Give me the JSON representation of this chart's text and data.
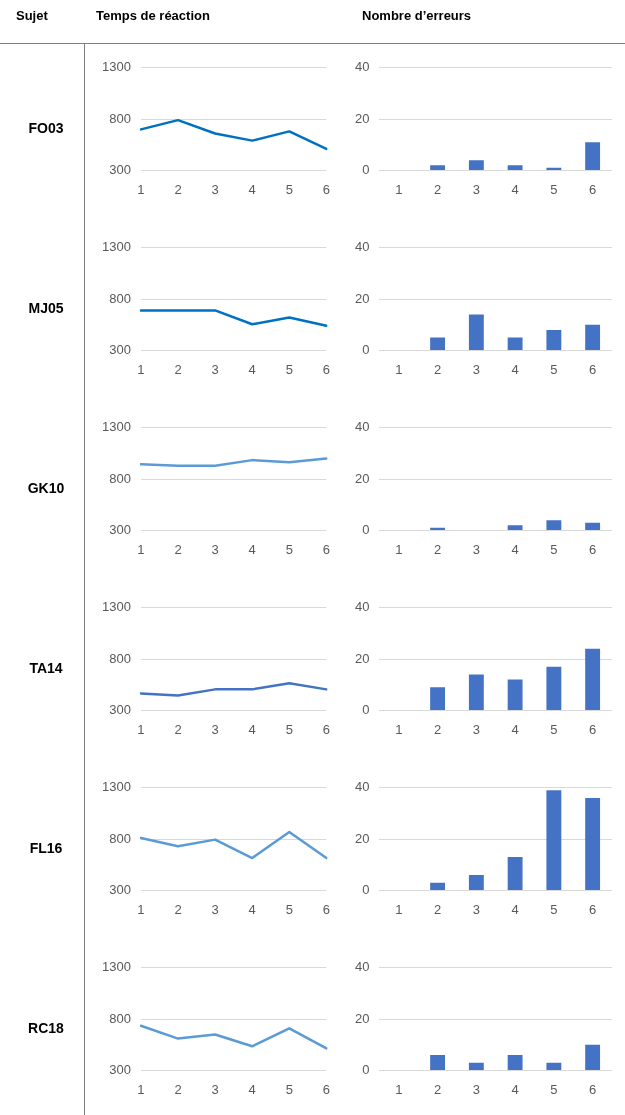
{
  "chart_data": [
    {
      "type": "line",
      "title": "Temps de réaction",
      "ylabel": "FO03",
      "annotations": [
        "Sujet"
      ],
      "categories": [
        "1",
        "2",
        "3",
        "4",
        "5",
        "6"
      ],
      "values": [
        700,
        790,
        660,
        590,
        680,
        510
      ],
      "color": "#0070c0",
      "ylim": [
        300,
        1300
      ],
      "yticks": [
        300,
        800,
        1300
      ],
      "grid": "y"
    },
    {
      "type": "bar",
      "title": "Nombre d’erreurs",
      "categories": [
        "1",
        "2",
        "3",
        "4",
        "5",
        "6"
      ],
      "values": [
        0,
        2,
        4,
        2,
        1,
        11
      ],
      "color": "#4472c4",
      "ylim": [
        0,
        40
      ],
      "yticks": [
        0,
        20,
        40
      ],
      "grid": "y"
    },
    {
      "type": "line",
      "ylabel": "MJ05",
      "categories": [
        "1",
        "2",
        "3",
        "4",
        "5",
        "6"
      ],
      "values": [
        690,
        690,
        690,
        555,
        620,
        540
      ],
      "color": "#0070c0",
      "ylim": [
        300,
        1300
      ],
      "yticks": [
        300,
        800,
        1300
      ],
      "grid": "y"
    },
    {
      "type": "bar",
      "categories": [
        "1",
        "2",
        "3",
        "4",
        "5",
        "6"
      ],
      "values": [
        0,
        5,
        14,
        5,
        8,
        10
      ],
      "color": "#4472c4",
      "ylim": [
        0,
        40
      ],
      "yticks": [
        0,
        20,
        40
      ],
      "grid": "y"
    },
    {
      "type": "line",
      "ylabel": "GK10",
      "categories": [
        "1",
        "2",
        "3",
        "4",
        "5",
        "6"
      ],
      "values": [
        945,
        930,
        930,
        985,
        965,
        1000
      ],
      "color": "#5b9bd5",
      "ylim": [
        300,
        1300
      ],
      "yticks": [
        300,
        800,
        1300
      ],
      "grid": "y"
    },
    {
      "type": "bar",
      "categories": [
        "1",
        "2",
        "3",
        "4",
        "5",
        "6"
      ],
      "values": [
        0,
        1,
        0,
        2,
        4,
        3
      ],
      "color": "#4472c4",
      "ylim": [
        0,
        40
      ],
      "yticks": [
        0,
        20,
        40
      ],
      "grid": "y"
    },
    {
      "type": "line",
      "ylabel": "TA14",
      "categories": [
        "1",
        "2",
        "3",
        "4",
        "5",
        "6"
      ],
      "values": [
        465,
        445,
        505,
        505,
        565,
        505
      ],
      "color": "#4472c4",
      "ylim": [
        300,
        1300
      ],
      "yticks": [
        300,
        800,
        1300
      ],
      "grid": "y"
    },
    {
      "type": "bar",
      "categories": [
        "1",
        "2",
        "3",
        "4",
        "5",
        "6"
      ],
      "values": [
        0,
        9,
        14,
        12,
        17,
        24
      ],
      "color": "#4472c4",
      "ylim": [
        0,
        40
      ],
      "yticks": [
        0,
        20,
        40
      ],
      "grid": "y"
    },
    {
      "type": "line",
      "ylabel": "FL16",
      "categories": [
        "1",
        "2",
        "3",
        "4",
        "5",
        "6"
      ],
      "values": [
        810,
        730,
        795,
        615,
        870,
        615
      ],
      "color": "#5b9bd5",
      "ylim": [
        300,
        1300
      ],
      "yticks": [
        300,
        800,
        1300
      ],
      "grid": "y"
    },
    {
      "type": "bar",
      "categories": [
        "1",
        "2",
        "3",
        "4",
        "5",
        "6"
      ],
      "values": [
        0,
        3,
        6,
        13,
        39,
        36
      ],
      "color": "#4472c4",
      "ylim": [
        0,
        40
      ],
      "yticks": [
        0,
        20,
        40
      ],
      "grid": "y"
    },
    {
      "type": "line",
      "ylabel": "RC18",
      "categories": [
        "1",
        "2",
        "3",
        "4",
        "5",
        "6"
      ],
      "values": [
        735,
        610,
        650,
        535,
        710,
        515
      ],
      "color": "#5b9bd5",
      "ylim": [
        300,
        1300
      ],
      "yticks": [
        300,
        800,
        1300
      ],
      "grid": "y"
    },
    {
      "type": "bar",
      "categories": [
        "1",
        "2",
        "3",
        "4",
        "5",
        "6"
      ],
      "values": [
        0,
        6,
        3,
        6,
        3,
        10
      ],
      "color": "#4472c4",
      "ylim": [
        0,
        40
      ],
      "yticks": [
        0,
        20,
        40
      ],
      "grid": "y"
    }
  ]
}
